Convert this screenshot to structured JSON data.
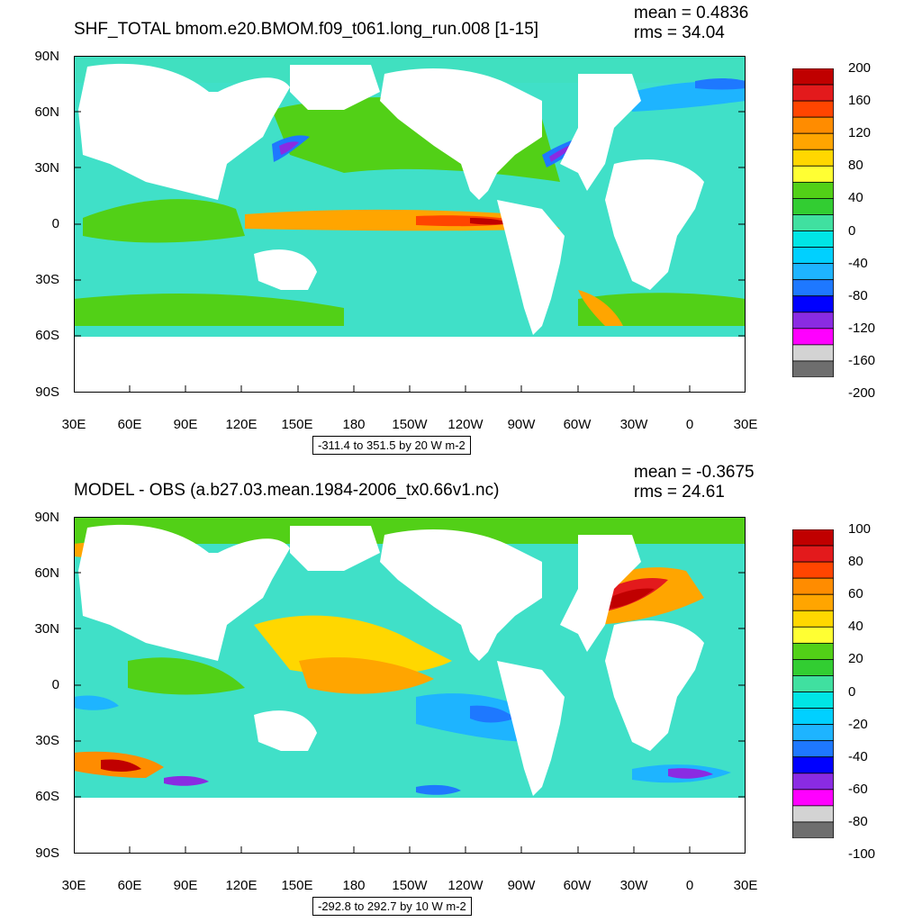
{
  "panels": [
    {
      "title": "SHF_TOTAL bmom.e20.BMOM.f09_t061.long_run.008 [1-15]",
      "mean_text": "mean = 0.4836",
      "rms_text": "rms = 34.04",
      "range_text": "-311.4 to 351.5 by 20 W m-2",
      "colorbar_labels": [
        "200",
        "160",
        "120",
        "80",
        "40",
        "0",
        "-40",
        "-80",
        "-120",
        "-160",
        "-200"
      ],
      "colors": [
        "#c00000",
        "#e31a1c",
        "#ff4500",
        "#ff8c00",
        "#ffa500",
        "#ffd700",
        "#ffff33",
        "#52d017",
        "#32cd32",
        "#40e0a0",
        "#00e5e5",
        "#00d0ff",
        "#1eb4ff",
        "#1e78ff",
        "#0000ff",
        "#8a2be2",
        "#ff00ff",
        "#d3d3d3",
        "#6e6e6e"
      ]
    },
    {
      "title": "MODEL - OBS (a.b27.03.mean.1984-2006_tx0.66v1.nc)",
      "mean_text": "mean = -0.3675",
      "rms_text": "rms = 24.61",
      "range_text": "-292.8 to 292.7 by 10 W m-2",
      "colorbar_labels": [
        "100",
        "80",
        "60",
        "40",
        "20",
        "0",
        "-20",
        "-40",
        "-60",
        "-80",
        "-100"
      ],
      "colors": [
        "#c00000",
        "#e31a1c",
        "#ff4500",
        "#ff8c00",
        "#ffa500",
        "#ffd700",
        "#ffff33",
        "#52d017",
        "#32cd32",
        "#40e0a0",
        "#00e5e5",
        "#00d0ff",
        "#1eb4ff",
        "#1e78ff",
        "#0000ff",
        "#8a2be2",
        "#ff00ff",
        "#d3d3d3",
        "#6e6e6e"
      ]
    }
  ],
  "lat_labels": [
    "90N",
    "60N",
    "30N",
    "0",
    "30S",
    "60S",
    "90S"
  ],
  "lon_labels": [
    "30E",
    "60E",
    "90E",
    "120E",
    "150E",
    "180",
    "150W",
    "120W",
    "90W",
    "60W",
    "30W",
    "0",
    "30E"
  ]
}
